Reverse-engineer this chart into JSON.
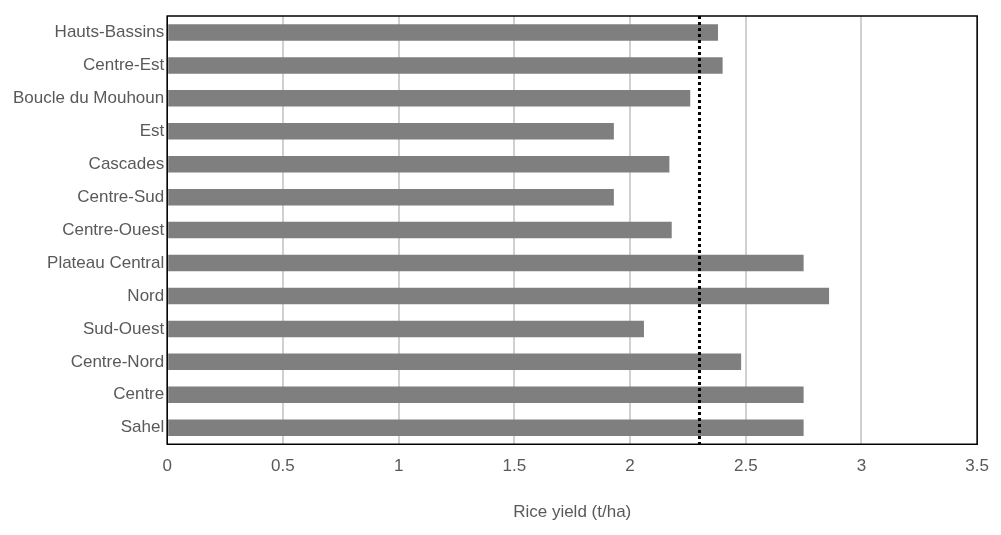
{
  "chart_data": {
    "type": "bar",
    "orientation": "horizontal",
    "xlabel": "Rice yield (t/ha)",
    "categories": [
      "Hauts-Bassins",
      "Centre-Est",
      "Boucle du Mouhoun",
      "Est",
      "Cascades",
      "Centre-Sud",
      "Centre-Ouest",
      "Plateau Central",
      "Nord",
      "Sud-Ouest",
      "Centre-Nord",
      "Centre",
      "Sahel"
    ],
    "values": [
      2.38,
      2.4,
      2.26,
      1.93,
      2.17,
      1.93,
      2.18,
      2.75,
      2.86,
      2.06,
      2.48,
      2.75,
      2.75
    ],
    "color": "#7f7f7f",
    "xlim": [
      0,
      3.5
    ],
    "xticks": [
      0,
      0.5,
      1,
      1.5,
      2,
      2.5,
      3,
      3.5
    ],
    "grid": "x",
    "legend": false,
    "ref_lines": [
      {
        "axis": "x",
        "value": 2.3,
        "color": "#000000",
        "line_style": "dotted"
      }
    ]
  }
}
